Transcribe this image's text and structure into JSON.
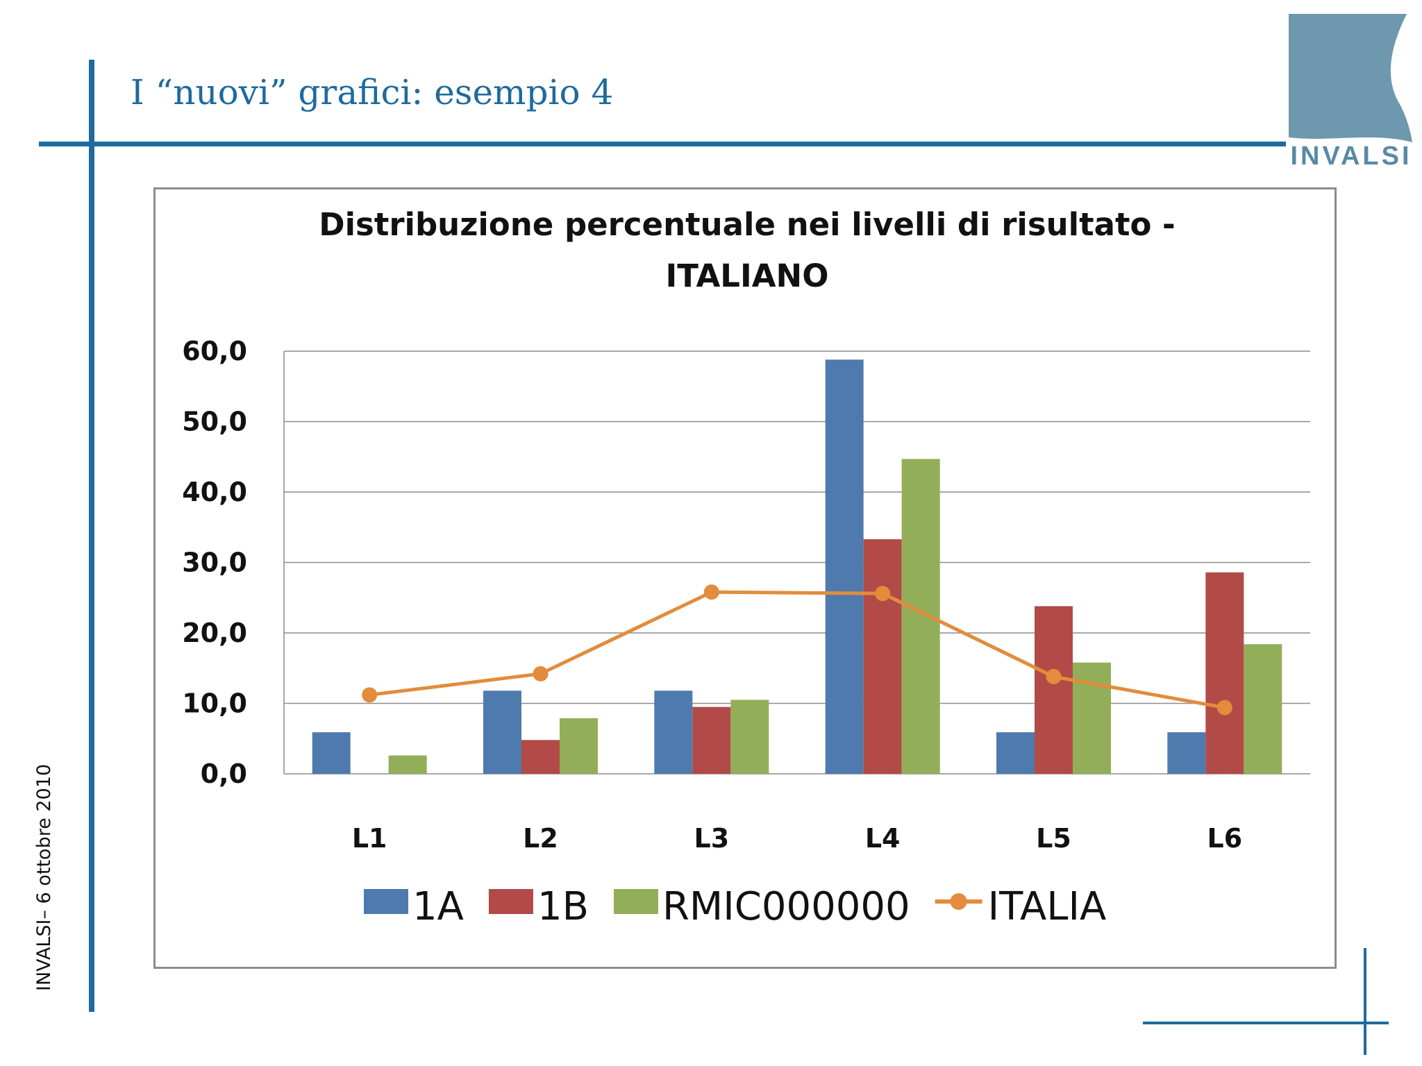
{
  "slide": {
    "title": "I “nuovi” grafici: esempio 4",
    "side_date": "INVALSI–  6 ottobre 2010",
    "logo_text": "INVALSI"
  },
  "colors": {
    "accent": "#1e6a9e",
    "logo": "#6d98ad",
    "series_1A": "#4f7aae",
    "series_1B": "#b24a48",
    "series_RMIC": "#93ae58",
    "series_ITALIA": "#e28c3c",
    "grid": "#8c8c8c"
  },
  "chart_data": {
    "type": "bar",
    "title_lines": [
      "Distribuzione percentuale nei livelli di risultato -",
      "ITALIANO"
    ],
    "categories": [
      "L1",
      "L2",
      "L3",
      "L4",
      "L5",
      "L6"
    ],
    "series": [
      {
        "name": "1A",
        "type": "bar",
        "values": [
          5.9,
          11.8,
          11.8,
          58.8,
          5.9,
          5.9
        ]
      },
      {
        "name": "1B",
        "type": "bar",
        "values": [
          0.0,
          4.8,
          9.5,
          33.3,
          23.8,
          28.6
        ]
      },
      {
        "name": "RMIC000000",
        "type": "bar",
        "values": [
          2.6,
          7.9,
          10.5,
          44.7,
          15.8,
          18.4
        ]
      },
      {
        "name": "ITALIA",
        "type": "line",
        "values": [
          11.2,
          14.2,
          25.8,
          25.6,
          13.8,
          9.4
        ]
      }
    ],
    "ylim": [
      0,
      60
    ],
    "yticks": [
      "0,0",
      "10,0",
      "20,0",
      "30,0",
      "40,0",
      "50,0",
      "60,0"
    ],
    "grid": true,
    "legend_position": "bottom"
  }
}
